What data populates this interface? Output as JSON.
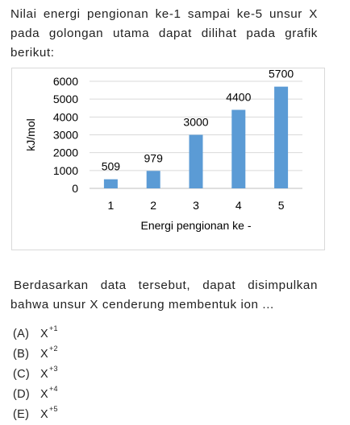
{
  "question": {
    "intro_lines": [
      "Nilai energi pengionan ke-1 sampai ke-5 unsur X",
      "pada golongan utama dapat dilihat pada grafik",
      "berikut:"
    ],
    "body_lines": [
      "Berdasarkan data tersebut, dapat disimpulkan",
      "bahwa unsur X cenderung membentuk ion ..."
    ],
    "options": [
      {
        "label": "(A)",
        "ion": "X",
        "charge": "+1"
      },
      {
        "label": "(B)",
        "ion": "X",
        "charge": "+2"
      },
      {
        "label": "(C)",
        "ion": "X",
        "charge": "+3"
      },
      {
        "label": "(D)",
        "ion": "X",
        "charge": "+4"
      },
      {
        "label": "(E)",
        "ion": "X",
        "charge": "+5"
      }
    ]
  },
  "chart_data": {
    "type": "bar",
    "categories": [
      "1",
      "2",
      "3",
      "4",
      "5"
    ],
    "values": [
      509,
      979,
      3000,
      4400,
      5700
    ],
    "data_labels": [
      "509",
      "979",
      "3000",
      "4400",
      "5700"
    ],
    "xlabel": "Energi pengionan ke -",
    "ylabel": "kJ/mol",
    "ylim": [
      0,
      6000
    ],
    "yticks": [
      0,
      1000,
      2000,
      3000,
      4000,
      5000,
      6000
    ],
    "ytick_labels": [
      "0",
      "1000",
      "2000",
      "3000",
      "4000",
      "5000",
      "6000"
    ],
    "grid": true,
    "legend": false,
    "bar_color": "#5b9bd5",
    "grid_color": "#d9d9d9"
  }
}
